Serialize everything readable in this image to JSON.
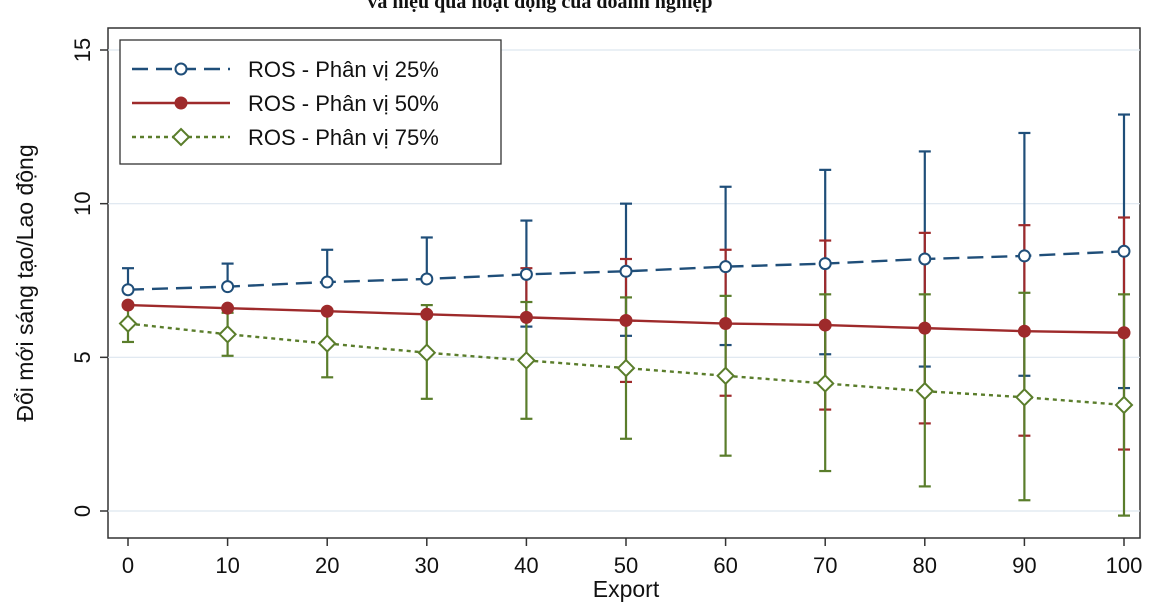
{
  "chart_data": {
    "type": "line",
    "title": "và hiệu quả hoạt động của doanh nghiệp",
    "xlabel": "Export",
    "ylabel": "Đổi mới sáng tạo/Lao động",
    "x": [
      0,
      10,
      20,
      30,
      40,
      50,
      60,
      70,
      80,
      90,
      100
    ],
    "xticks": [
      "0",
      "10",
      "20",
      "30",
      "40",
      "50",
      "60",
      "70",
      "80",
      "90",
      "100"
    ],
    "yticks": [
      "0",
      "5",
      "10",
      "15"
    ],
    "xlim": [
      0,
      100
    ],
    "ylim": [
      0,
      15
    ],
    "grid": true,
    "legend_position": "top-left",
    "series": [
      {
        "name": "ROS - Phân vị 25%",
        "color": "#1f4e79",
        "line_style": "dashed",
        "marker": "circle-open",
        "values": [
          7.2,
          7.3,
          7.45,
          7.55,
          7.7,
          7.8,
          7.95,
          8.05,
          8.2,
          8.3,
          8.45
        ],
        "upper": [
          7.9,
          8.05,
          8.5,
          8.9,
          9.45,
          10.0,
          10.55,
          11.1,
          11.7,
          12.3,
          12.9
        ],
        "lower": [
          null,
          null,
          null,
          null,
          6.0,
          5.7,
          5.4,
          5.1,
          4.7,
          4.4,
          4.0
        ]
      },
      {
        "name": "ROS - Phân vị 50%",
        "color": "#9e2a2b",
        "line_style": "solid",
        "marker": "circle-filled",
        "values": [
          6.7,
          6.6,
          6.5,
          6.4,
          6.3,
          6.2,
          6.1,
          6.05,
          5.95,
          5.85,
          5.8
        ],
        "upper": [
          null,
          null,
          null,
          null,
          7.9,
          8.2,
          8.5,
          8.8,
          9.05,
          9.3,
          9.55
        ],
        "lower": [
          null,
          null,
          null,
          null,
          null,
          4.2,
          3.75,
          3.3,
          2.85,
          2.45,
          2.0
        ]
      },
      {
        "name": "ROS - Phân vị 75%",
        "color": "#5a7d2b",
        "line_style": "dotted",
        "marker": "diamond-open",
        "values": [
          6.1,
          5.75,
          5.45,
          5.15,
          4.9,
          4.65,
          4.4,
          4.15,
          3.9,
          3.7,
          3.45
        ],
        "upper": [
          6.7,
          6.45,
          6.55,
          6.7,
          6.8,
          6.95,
          7.0,
          7.05,
          7.05,
          7.1,
          7.05
        ],
        "lower": [
          5.5,
          5.05,
          4.35,
          3.65,
          3.0,
          2.35,
          1.8,
          1.3,
          0.8,
          0.35,
          -0.15
        ]
      }
    ]
  }
}
